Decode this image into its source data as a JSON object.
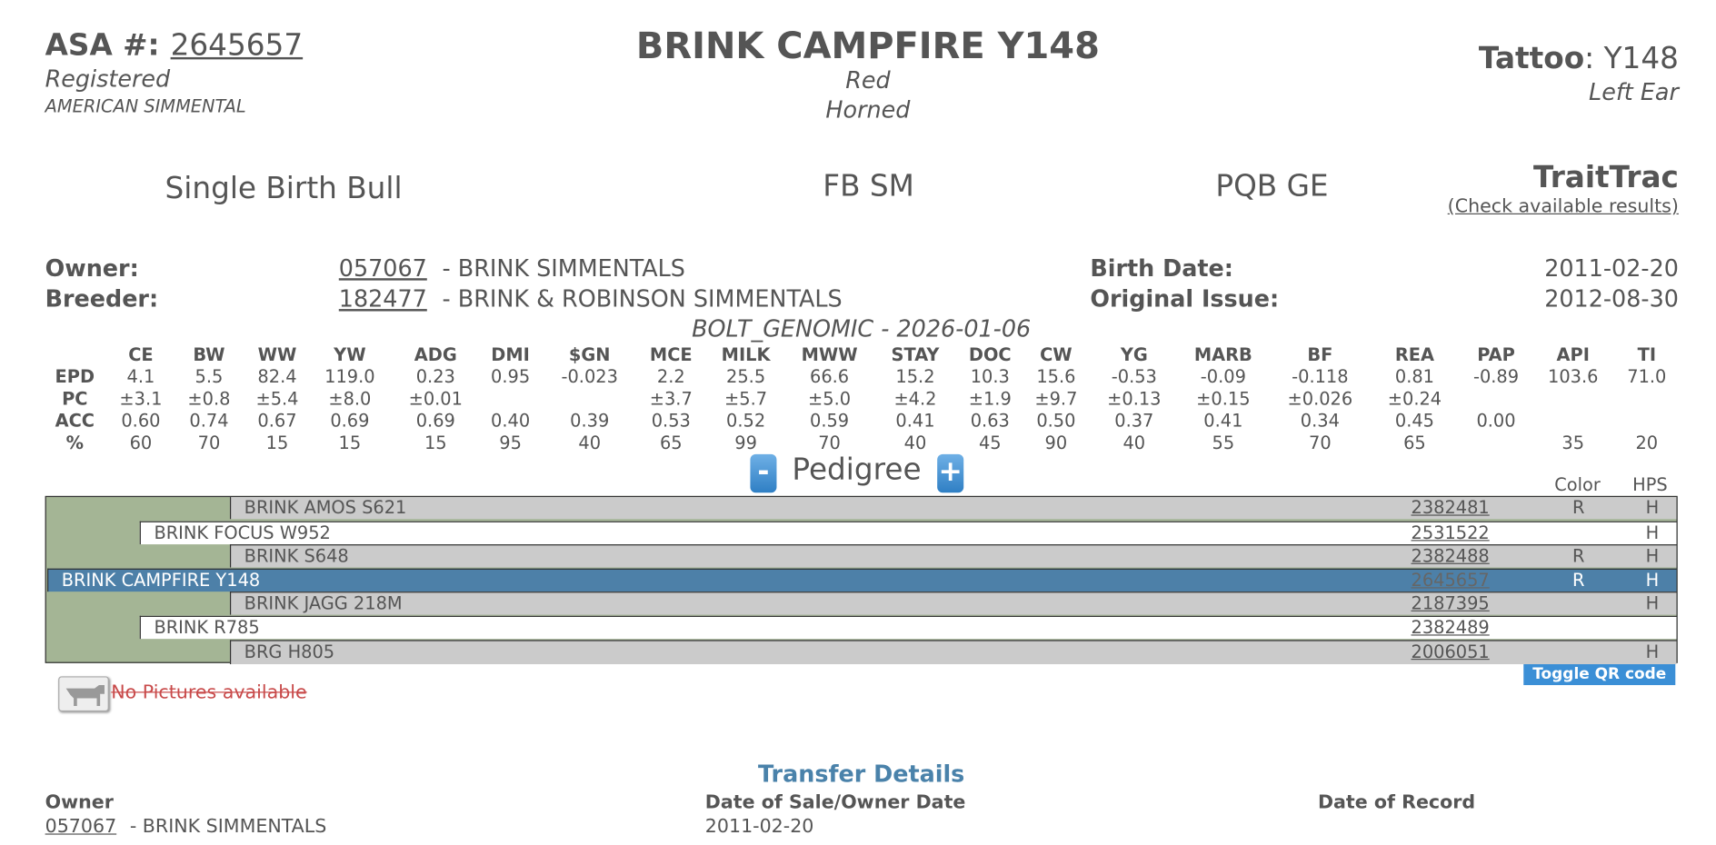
{
  "header": {
    "asa_label": "ASA #:",
    "asa_number": "2645657",
    "status": "Registered",
    "association": "AMERICAN SIMMENTAL",
    "name": "BRINK CAMPFIRE Y148",
    "color": "Red",
    "horn_status": "Horned",
    "tattoo_label": "Tattoo",
    "tattoo": ": Y148",
    "tattoo_location": "Left Ear"
  },
  "summary": {
    "birth_type": "Single Birth Bull",
    "breed": "FB SM",
    "status": "PQB GE",
    "traittrac": "TraitTrac",
    "traittrac_link": "(Check available results)"
  },
  "info": {
    "owner_label": "Owner:",
    "owner_id": "057067",
    "owner_name": "- BRINK SIMMENTALS",
    "breeder_label": "Breeder:",
    "breeder_id": "182477",
    "breeder_name": "- BRINK & ROBINSON SIMMENTALS",
    "birth_date_label": "Birth Date:",
    "birth_date": "2011-02-20",
    "original_issue_label": "Original Issue:",
    "original_issue": "2012-08-30"
  },
  "epd": {
    "title": "BOLT_GENOMIC - 2026-01-06",
    "columns": [
      "CE",
      "BW",
      "WW",
      "YW",
      "ADG",
      "DMI",
      "$GN",
      "MCE",
      "MILK",
      "MWW",
      "STAY",
      "DOC",
      "CW",
      "YG",
      "MARB",
      "BF",
      "REA",
      "PAP",
      "API",
      "TI"
    ],
    "rows": [
      {
        "label": "EPD",
        "values": [
          "4.1",
          "5.5",
          "82.4",
          "119.0",
          "0.23",
          "0.95",
          "-0.023",
          "2.2",
          "25.5",
          "66.6",
          "15.2",
          "10.3",
          "15.6",
          "-0.53",
          "-0.09",
          "-0.118",
          "0.81",
          "-0.89",
          "103.6",
          "71.0"
        ]
      },
      {
        "label": "PC",
        "values": [
          "±3.1",
          "±0.8",
          "±5.4",
          "±8.0",
          "±0.01",
          null,
          null,
          "±3.7",
          "±5.7",
          "±5.0",
          "±4.2",
          "±1.9",
          "±9.7",
          "±0.13",
          "±0.15",
          "±0.026",
          "±0.24",
          null,
          null,
          null
        ]
      },
      {
        "label": "ACC",
        "values": [
          "0.60",
          "0.74",
          "0.67",
          "0.69",
          "0.69",
          "0.40",
          "0.39",
          "0.53",
          "0.52",
          "0.59",
          "0.41",
          "0.63",
          "0.50",
          "0.37",
          "0.41",
          "0.34",
          "0.45",
          "0.00",
          null,
          null
        ]
      },
      {
        "label": "%",
        "values": [
          "60",
          "70",
          "15",
          "15",
          "15",
          "95",
          "40",
          "65",
          "99",
          "70",
          "40",
          "45",
          "90",
          "40",
          "55",
          "70",
          "65",
          null,
          "35",
          "20"
        ]
      }
    ]
  },
  "pedigree": {
    "collapse": "-",
    "title": "Pedigree",
    "expand": "+",
    "color_header": "Color",
    "hps_header": "HPS",
    "rows": [
      {
        "name": "BRINK AMOS S621",
        "reg": "2382481",
        "color": "R",
        "hps": "H"
      },
      {
        "name": "BRINK FOCUS W952",
        "reg": "2531522",
        "color": null,
        "hps": "H"
      },
      {
        "name": "BRINK S648",
        "reg": "2382488",
        "color": "R",
        "hps": "H"
      },
      {
        "name": "BRINK CAMPFIRE Y148",
        "reg": "2645657",
        "color": "R",
        "hps": "H"
      },
      {
        "name": "BRINK JAGG 218M",
        "reg": "2187395",
        "color": null,
        "hps": "H"
      },
      {
        "name": "BRINK R785",
        "reg": "2382489",
        "color": null,
        "hps": null
      },
      {
        "name": "BRG H805",
        "reg": "2006051",
        "color": null,
        "hps": "H"
      }
    ]
  },
  "pictures": {
    "text": "No Pictures available",
    "qr_toggle": "Toggle QR code"
  },
  "transfer": {
    "title": "Transfer Details",
    "headers": [
      "Owner",
      "Date of Sale/Owner Date",
      "Date of Record"
    ],
    "owner_id": "057067",
    "owner_name": "- BRINK SIMMENTALS",
    "sale_date": "2011-02-20"
  }
}
